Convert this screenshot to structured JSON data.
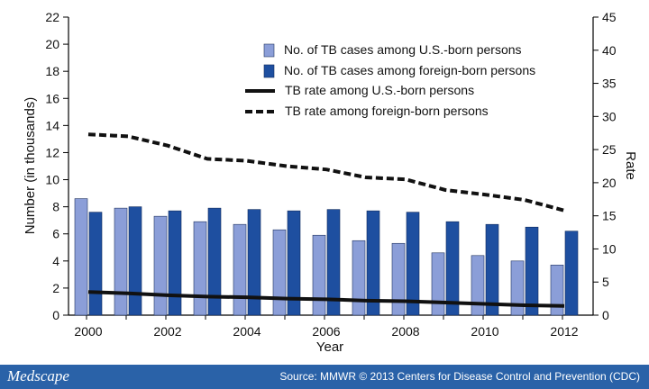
{
  "chart_data": {
    "type": "bar",
    "title": "",
    "xlabel": "Year",
    "ylabel": "Number (in thousands)",
    "y2label": "Rate",
    "ylim": [
      0,
      22
    ],
    "y2lim": [
      0,
      45
    ],
    "categories": [
      "2000",
      "2001",
      "2002",
      "2003",
      "2004",
      "2005",
      "2006",
      "2007",
      "2008",
      "2009",
      "2010",
      "2011",
      "2012"
    ],
    "x_tick_labels": [
      "2000",
      "2002",
      "2004",
      "2006",
      "2008",
      "2010",
      "2012"
    ],
    "y_ticks": [
      "0",
      "2",
      "4",
      "6",
      "8",
      "10",
      "12",
      "14",
      "16",
      "18",
      "20",
      "22"
    ],
    "y2_ticks": [
      "0",
      "5",
      "10",
      "15",
      "20",
      "25",
      "30",
      "35",
      "40",
      "45"
    ],
    "series": [
      {
        "name": "No. of TB cases among U.S.-born persons",
        "kind": "bar",
        "axis": "left",
        "color": "#8b9ed8",
        "values": [
          8.6,
          7.9,
          7.3,
          6.9,
          6.7,
          6.3,
          5.9,
          5.5,
          5.3,
          4.6,
          4.4,
          4.0,
          3.7
        ]
      },
      {
        "name": "No. of TB cases among foreign-born persons",
        "kind": "bar",
        "axis": "left",
        "color": "#1e4fa0",
        "values": [
          7.6,
          8.0,
          7.7,
          7.9,
          7.8,
          7.7,
          7.8,
          7.7,
          7.6,
          6.9,
          6.7,
          6.5,
          6.2
        ]
      },
      {
        "name": "TB rate among U.S.-born persons",
        "kind": "line",
        "style": "solid",
        "axis": "right",
        "color": "#111111",
        "values": [
          3.5,
          3.3,
          3.0,
          2.8,
          2.7,
          2.5,
          2.4,
          2.2,
          2.1,
          1.9,
          1.7,
          1.5,
          1.4
        ]
      },
      {
        "name": "TB rate among foreign-born persons",
        "kind": "line",
        "style": "dashed",
        "axis": "right",
        "color": "#111111",
        "values": [
          27.3,
          27.0,
          25.6,
          23.6,
          23.3,
          22.5,
          22.0,
          20.8,
          20.5,
          18.9,
          18.2,
          17.4,
          15.8
        ]
      }
    ],
    "legend_position": "top-right",
    "grid": false
  },
  "footer": {
    "brand": "Medscape",
    "source": "Source: MMWR © 2013 Centers for Disease Control and Prevention (CDC)",
    "bg_color": "#2a62a8"
  }
}
